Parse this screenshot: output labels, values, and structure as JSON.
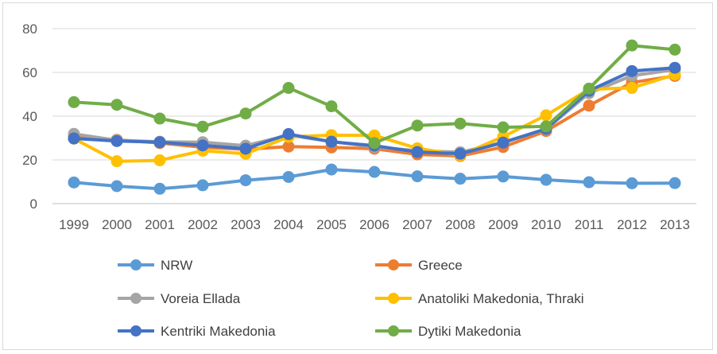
{
  "chart_data": {
    "type": "line",
    "title": "",
    "xlabel": "",
    "ylabel": "",
    "ylim": [
      0,
      80
    ],
    "yticks": [
      0,
      20,
      40,
      60,
      80
    ],
    "grid": "horizontal",
    "legend_placement": "bottom",
    "categories": [
      "1999",
      "2000",
      "2001",
      "2002",
      "2003",
      "2004",
      "2005",
      "2006",
      "2007",
      "2008",
      "2009",
      "2010",
      "2011",
      "2012",
      "2013"
    ],
    "series": [
      {
        "name": "NRW",
        "color": "#5b9bd5",
        "values": [
          9.7,
          8.0,
          6.8,
          8.4,
          10.7,
          12.2,
          15.6,
          14.5,
          12.5,
          11.4,
          12.4,
          10.9,
          9.8,
          9.3,
          9.4
        ]
      },
      {
        "name": "Greece",
        "color": "#ed7d31",
        "values": [
          30.8,
          29.2,
          27.7,
          25.8,
          24.8,
          26.1,
          25.7,
          25.1,
          22.5,
          21.8,
          25.9,
          33.2,
          44.8,
          55.4,
          58.4
        ]
      },
      {
        "name": "Voreia Ellada",
        "color": "#a5a5a5",
        "values": [
          31.9,
          29.0,
          28.3,
          28.1,
          26.5,
          31.3,
          28.4,
          25.9,
          24.2,
          23.5,
          28.1,
          34.0,
          50.5,
          58.5,
          61.2
        ]
      },
      {
        "name": "Anatoliki Makedonia, Thraki",
        "color": "#ffc000",
        "values": [
          29.7,
          19.4,
          19.8,
          24.2,
          22.8,
          30.5,
          31.3,
          31.2,
          25.3,
          22.1,
          30.6,
          40.4,
          52.3,
          52.9,
          59.0
        ]
      },
      {
        "name": "Kentriki Makedonia",
        "color": "#4472c4",
        "values": [
          29.8,
          28.6,
          28.1,
          26.6,
          25.1,
          31.8,
          28.3,
          26.5,
          23.6,
          22.8,
          27.9,
          34.2,
          51.6,
          60.6,
          62.1
        ]
      },
      {
        "name": "Dytiki Makedonia",
        "color": "#70ad47",
        "values": [
          46.4,
          45.2,
          38.9,
          35.2,
          41.2,
          52.9,
          44.5,
          27.7,
          35.7,
          36.6,
          34.9,
          35.3,
          52.6,
          72.3,
          70.4
        ]
      }
    ]
  }
}
